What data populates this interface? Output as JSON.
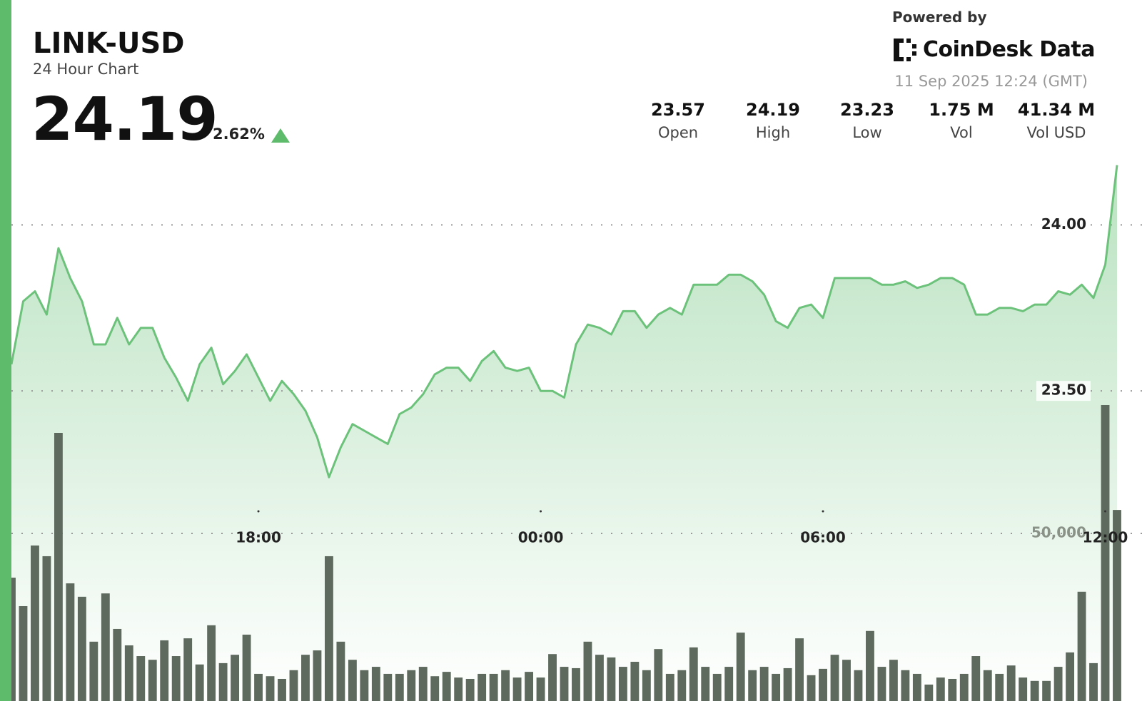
{
  "header": {
    "title": "LINK-USD",
    "subtitle": "24 Hour Chart",
    "price": "24.19",
    "change": "2.62%",
    "powered_by": "Powered by",
    "brand": "CoinDesk Data",
    "timestamp": "11 Sep 2025 12:24 (GMT)",
    "stats": [
      {
        "value": "23.57",
        "label": "Open"
      },
      {
        "value": "24.19",
        "label": "High"
      },
      {
        "value": "23.23",
        "label": "Low"
      },
      {
        "value": "1.75 M",
        "label": "Vol"
      },
      {
        "value": "41.34 M",
        "label": "Vol USD"
      }
    ]
  },
  "chart_data": {
    "type": "line",
    "categories": [
      null,
      null,
      null,
      null,
      null,
      null,
      null,
      null,
      null,
      null,
      null,
      null,
      null,
      null,
      null,
      null,
      null,
      null,
      null,
      null,
      null,
      "18:00",
      null,
      null,
      null,
      null,
      null,
      null,
      null,
      null,
      null,
      null,
      null,
      null,
      null,
      null,
      null,
      null,
      null,
      null,
      null,
      null,
      null,
      null,
      null,
      "00:00",
      null,
      null,
      null,
      null,
      null,
      null,
      null,
      null,
      null,
      null,
      null,
      null,
      null,
      null,
      null,
      null,
      null,
      null,
      null,
      null,
      null,
      null,
      null,
      "06:00",
      null,
      null,
      null,
      null,
      null,
      null,
      null,
      null,
      null,
      null,
      null,
      null,
      null,
      null,
      null,
      null,
      null,
      null,
      null,
      null,
      null,
      null,
      null,
      "12:00",
      null
    ],
    "series": [
      {
        "color": "#6cc27a",
        "values": [
          23.58,
          23.77,
          23.8,
          23.73,
          23.93,
          23.84,
          23.77,
          23.64,
          23.64,
          23.72,
          23.64,
          23.69,
          23.69,
          23.6,
          23.54,
          23.47,
          23.58,
          23.63,
          23.52,
          23.56,
          23.61,
          23.54,
          23.47,
          23.53,
          23.49,
          23.44,
          23.36,
          23.24,
          23.33,
          23.4,
          23.38,
          23.36,
          23.34,
          23.43,
          23.45,
          23.49,
          23.55,
          23.57,
          23.57,
          23.53,
          23.59,
          23.62,
          23.57,
          23.56,
          23.57,
          23.5,
          23.5,
          23.48,
          23.64,
          23.7,
          23.69,
          23.67,
          23.74,
          23.74,
          23.69,
          23.73,
          23.75,
          23.73,
          23.82,
          23.82,
          23.82,
          23.85,
          23.85,
          23.83,
          23.79,
          23.71,
          23.69,
          23.75,
          23.76,
          23.72,
          23.84,
          23.84,
          23.84,
          23.84,
          23.82,
          23.82,
          23.83,
          23.81,
          23.82,
          23.84,
          23.84,
          23.82,
          23.73,
          23.73,
          23.75,
          23.75,
          23.74,
          23.76,
          23.76,
          23.8,
          23.79,
          23.82,
          23.78,
          23.88,
          24.18
        ]
      },
      {
        "color": "#5f6a5e",
        "axis": "y2",
        "type": "bar",
        "values": [
          36800,
          28300,
          46400,
          43200,
          80000,
          35100,
          31100,
          17700,
          32100,
          21500,
          16600,
          13400,
          12300,
          18100,
          13400,
          18700,
          10900,
          22600,
          11300,
          13800,
          19800,
          8100,
          7400,
          6600,
          9200,
          13800,
          15100,
          43200,
          17700,
          12300,
          9200,
          10200,
          8100,
          8100,
          9200,
          10200,
          7400,
          8700,
          7000,
          6600,
          8100,
          8100,
          9200,
          7000,
          8700,
          7000,
          14000,
          10200,
          9800,
          17700,
          13800,
          13000,
          10200,
          11700,
          9200,
          15500,
          8100,
          9200,
          16000,
          10200,
          8100,
          10200,
          20400,
          9200,
          10200,
          8100,
          9800,
          18700,
          7700,
          9600,
          13800,
          12300,
          9200,
          20900,
          10200,
          12300,
          9200,
          8100,
          4900,
          7000,
          6600,
          8100,
          13400,
          9200,
          8100,
          10600,
          7000,
          6000,
          6000,
          10200,
          14500,
          32600,
          11300,
          88300,
          57000
        ]
      }
    ],
    "ylim": [
      23.06,
      24.25
    ],
    "yticks": [
      {
        "value": 24,
        "label": "24.00"
      },
      {
        "value": 23.5,
        "label": "23.50"
      }
    ],
    "y2lim": [
      0,
      200000
    ],
    "y2ticks": [
      {
        "value": 50000,
        "label": "50,000"
      }
    ],
    "grid": true
  }
}
